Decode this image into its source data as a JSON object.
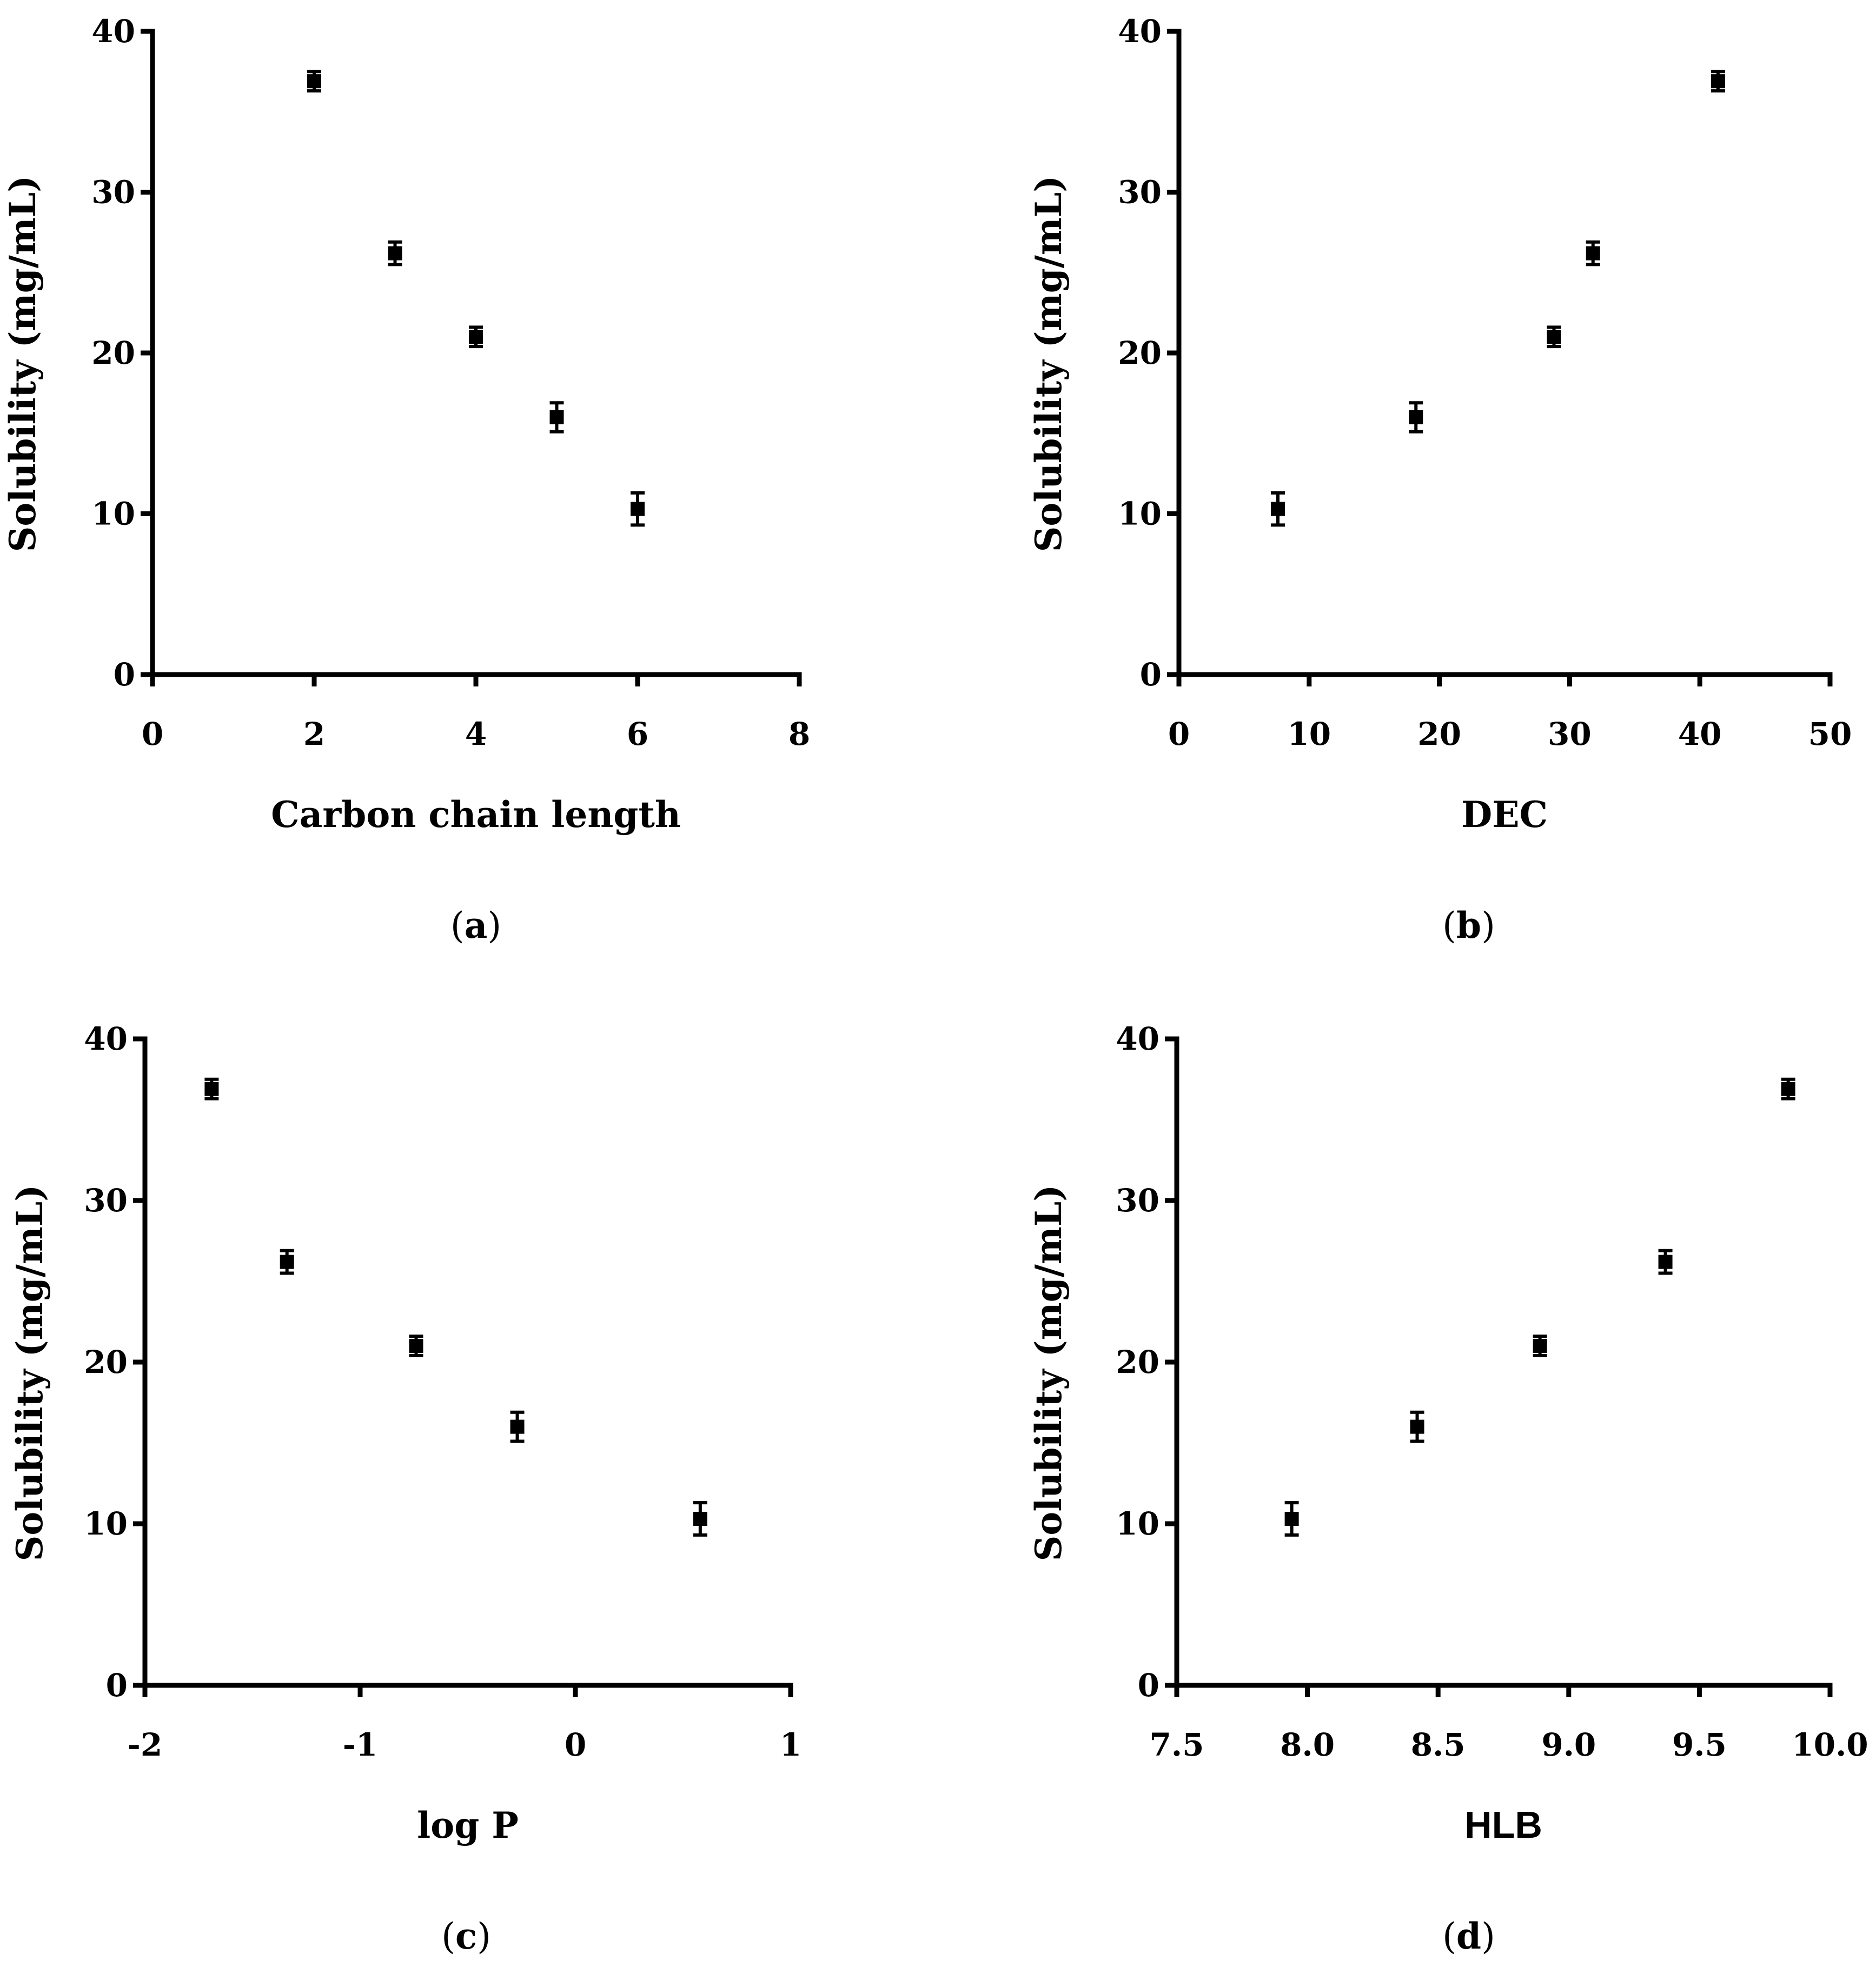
{
  "chart_data": [
    {
      "type": "scatter",
      "panel_label": "a",
      "xlabel": "Carbon chain length",
      "ylabel": "Solubility (mg/mL)",
      "xlim": [
        0,
        8
      ],
      "ylim": [
        0,
        40
      ],
      "xticks": [
        "0",
        "2",
        "4",
        "6",
        "8"
      ],
      "yticks": [
        "0",
        "10",
        "20",
        "30",
        "40"
      ],
      "points": [
        {
          "x": 2,
          "y": 36.9,
          "err": 0.6
        },
        {
          "x": 3,
          "y": 26.2,
          "err": 0.7
        },
        {
          "x": 4,
          "y": 21.0,
          "err": 0.6
        },
        {
          "x": 5,
          "y": 16.0,
          "err": 0.9
        },
        {
          "x": 6,
          "y": 10.3,
          "err": 1.0
        }
      ]
    },
    {
      "type": "scatter",
      "panel_label": "b",
      "xlabel": "DEC",
      "ylabel": "Solubility (mg/mL)",
      "xlim": [
        0,
        50
      ],
      "ylim": [
        0,
        40
      ],
      "xticks": [
        "0",
        "10",
        "20",
        "30",
        "40",
        "50"
      ],
      "yticks": [
        "0",
        "10",
        "20",
        "30",
        "40"
      ],
      "points": [
        {
          "x": 7.6,
          "y": 10.3,
          "err": 1.0
        },
        {
          "x": 18.2,
          "y": 16.0,
          "err": 0.9
        },
        {
          "x": 28.8,
          "y": 21.0,
          "err": 0.6
        },
        {
          "x": 31.8,
          "y": 26.2,
          "err": 0.7
        },
        {
          "x": 41.4,
          "y": 36.9,
          "err": 0.6
        }
      ]
    },
    {
      "type": "scatter",
      "panel_label": "c",
      "xlabel": "log P",
      "ylabel": "Solubility (mg/mL)",
      "xlim": [
        -2,
        1
      ],
      "ylim": [
        0,
        40
      ],
      "xticks": [
        "-2",
        "-1",
        "0",
        "1"
      ],
      "yticks": [
        "0",
        "10",
        "20",
        "30",
        "40"
      ],
      "points": [
        {
          "x": -1.69,
          "y": 36.9,
          "err": 0.6
        },
        {
          "x": -1.34,
          "y": 26.2,
          "err": 0.7
        },
        {
          "x": -0.74,
          "y": 21.0,
          "err": 0.6
        },
        {
          "x": -0.27,
          "y": 16.0,
          "err": 0.9
        },
        {
          "x": 0.58,
          "y": 10.3,
          "err": 1.0
        }
      ]
    },
    {
      "type": "scatter",
      "panel_label": "d",
      "xlabel": "HLB",
      "ylabel": "Solubility (mg/mL)",
      "xlim": [
        7.5,
        10.0
      ],
      "ylim": [
        0,
        40
      ],
      "xticks": [
        "7.5",
        "8.0",
        "8.5",
        "9.0",
        "9.5",
        "10.0"
      ],
      "yticks": [
        "0",
        "10",
        "20",
        "30",
        "40"
      ],
      "points": [
        {
          "x": 7.94,
          "y": 10.3,
          "err": 1.0
        },
        {
          "x": 8.42,
          "y": 16.0,
          "err": 0.9
        },
        {
          "x": 8.89,
          "y": 21.0,
          "err": 0.6
        },
        {
          "x": 9.37,
          "y": 26.2,
          "err": 0.7
        },
        {
          "x": 9.84,
          "y": 36.9,
          "err": 0.6
        }
      ]
    }
  ]
}
